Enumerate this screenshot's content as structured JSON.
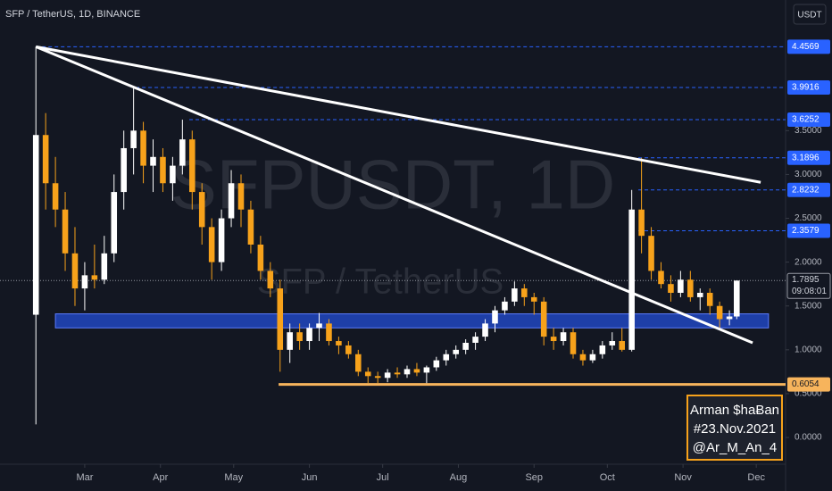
{
  "chart_data": {
    "type": "candlestick",
    "title": "SFP / TetherUS, 1D, BINANCE",
    "watermark": "SFPUSDT, 1D",
    "watermark_subtitle": "SFP / TetherUS",
    "currency_button": "USDT",
    "up_color": "#ffffff",
    "down_color": "#f7a21b",
    "x": [
      40,
      44,
      48,
      52,
      56,
      60,
      64,
      68,
      72,
      76,
      80,
      84,
      88,
      92,
      96,
      100,
      104,
      108,
      112,
      116,
      120,
      124,
      128,
      132,
      136,
      140,
      144,
      148,
      152,
      156,
      160,
      164,
      168,
      172,
      176,
      180,
      184,
      188,
      192,
      196,
      200,
      204,
      208,
      212,
      216,
      220,
      224,
      228,
      232,
      236,
      240,
      244,
      248,
      252,
      256,
      260,
      264,
      268,
      272,
      276,
      280,
      284,
      288,
      292,
      296,
      300,
      304,
      308,
      312,
      316,
      320,
      324,
      327
    ],
    "open": [
      1.4,
      3.45,
      2.9,
      2.6,
      2.1,
      1.7,
      1.85,
      1.8,
      2.1,
      2.8,
      3.3,
      3.5,
      3.1,
      3.2,
      2.9,
      3.1,
      3.4,
      2.8,
      2.4,
      2.0,
      2.5,
      2.9,
      2.6,
      2.2,
      1.9,
      1.7,
      1.0,
      1.2,
      1.1,
      1.25,
      1.3,
      1.1,
      1.05,
      0.95,
      0.75,
      0.7,
      0.68,
      0.74,
      0.72,
      0.78,
      0.74,
      0.8,
      0.88,
      0.95,
      1.0,
      1.08,
      1.15,
      1.3,
      1.45,
      1.55,
      1.7,
      1.6,
      1.55,
      1.15,
      1.1,
      1.2,
      0.95,
      0.88,
      0.95,
      1.05,
      1.1,
      1.0,
      2.6,
      2.3,
      1.9,
      1.75,
      1.65,
      1.8,
      1.6,
      1.65,
      1.5,
      1.35,
      1.38
    ],
    "high": [
      4.4569,
      3.7,
      3.2,
      2.8,
      2.4,
      2.0,
      2.2,
      2.3,
      3.0,
      3.5,
      3.9916,
      3.6,
      3.4,
      3.3,
      3.2,
      3.6252,
      3.5,
      2.9,
      2.5,
      2.6,
      3.05,
      3.0,
      2.7,
      2.3,
      2.0,
      1.8,
      1.3,
      1.3,
      1.3,
      1.42,
      1.35,
      1.15,
      1.1,
      1.0,
      0.8,
      0.75,
      0.78,
      0.8,
      0.82,
      0.85,
      0.82,
      0.92,
      1.0,
      1.05,
      1.12,
      1.2,
      1.35,
      1.5,
      1.6,
      1.78,
      1.75,
      1.65,
      1.6,
      1.25,
      1.25,
      1.25,
      1.0,
      1.0,
      1.1,
      1.2,
      1.25,
      2.8232,
      3.1896,
      2.4,
      2.0,
      1.85,
      1.9,
      1.9,
      1.7,
      1.7,
      1.55,
      1.45,
      1.79
    ],
    "low": [
      0.15,
      2.6,
      2.4,
      1.9,
      1.5,
      1.45,
      1.7,
      1.75,
      2.0,
      2.6,
      3.0,
      2.9,
      2.8,
      2.8,
      2.7,
      3.0,
      2.6,
      2.2,
      1.8,
      1.9,
      2.4,
      2.4,
      2.1,
      1.8,
      1.6,
      0.75,
      0.85,
      1.0,
      1.0,
      1.1,
      1.05,
      0.95,
      0.9,
      0.7,
      0.62,
      0.62,
      0.63,
      0.68,
      0.68,
      0.7,
      0.62,
      0.76,
      0.82,
      0.9,
      0.95,
      1.0,
      1.1,
      1.2,
      1.4,
      1.5,
      1.5,
      1.4,
      1.05,
      1.0,
      1.05,
      0.9,
      0.82,
      0.85,
      0.9,
      1.0,
      0.98,
      0.98,
      2.1,
      1.8,
      1.7,
      1.55,
      1.6,
      1.55,
      1.45,
      1.4,
      1.25,
      1.28,
      1.35
    ],
    "close": [
      3.45,
      2.9,
      2.6,
      2.1,
      1.7,
      1.85,
      1.8,
      2.1,
      2.8,
      3.3,
      3.5,
      3.1,
      3.2,
      2.9,
      3.1,
      3.4,
      2.8,
      2.4,
      2.0,
      2.5,
      2.9,
      2.6,
      2.2,
      1.9,
      1.7,
      1.0,
      1.2,
      1.1,
      1.25,
      1.3,
      1.1,
      1.05,
      0.95,
      0.75,
      0.7,
      0.68,
      0.74,
      0.72,
      0.78,
      0.74,
      0.8,
      0.88,
      0.95,
      1.0,
      1.08,
      1.15,
      1.3,
      1.45,
      1.55,
      1.7,
      1.6,
      1.55,
      1.15,
      1.1,
      1.2,
      0.95,
      0.88,
      0.95,
      1.05,
      1.1,
      1.0,
      2.6,
      2.3,
      1.9,
      1.75,
      1.65,
      1.8,
      1.6,
      1.65,
      1.5,
      1.35,
      1.38,
      1.7895
    ],
    "xlim": [
      25.3,
      347.0
    ],
    "ylim": [
      -0.305,
      4.99
    ],
    "xticks": [
      {
        "value": 60,
        "label": "Mar"
      },
      {
        "value": 91,
        "label": "Apr"
      },
      {
        "value": 121,
        "label": "May"
      },
      {
        "value": 152,
        "label": "Jun"
      },
      {
        "value": 182,
        "label": "Jul"
      },
      {
        "value": 213,
        "label": "Aug"
      },
      {
        "value": 244,
        "label": "Sep"
      },
      {
        "value": 274,
        "label": "Oct"
      },
      {
        "value": 305,
        "label": "Nov"
      },
      {
        "value": 335,
        "label": "Dec"
      }
    ],
    "yticks": [
      {
        "value": 0,
        "label": "0.0000"
      },
      {
        "value": 0.5,
        "label": "0.5000"
      },
      {
        "value": 1,
        "label": "1.0000"
      },
      {
        "value": 1.5,
        "label": "1.5000"
      },
      {
        "value": 2,
        "label": "2.0000"
      },
      {
        "value": 2.5,
        "label": "2.5000"
      },
      {
        "value": 3,
        "label": "3.0000"
      },
      {
        "value": 3.5,
        "label": "3.5000"
      }
    ],
    "grid": false,
    "levels": [
      {
        "value": 4.4569,
        "from": 40
      },
      {
        "value": 3.9916,
        "from": 80.9
      },
      {
        "value": 3.6252,
        "from": 102.8
      },
      {
        "value": 3.1896,
        "from": 286.7
      },
      {
        "value": 2.8232,
        "from": 286.7
      },
      {
        "value": 2.3579,
        "from": 286.7
      }
    ],
    "level_color": "#2962ff",
    "support_line": {
      "value": 0.6054,
      "from": 139.4,
      "color": "#f7b45c"
    },
    "support_zone": {
      "from": 48,
      "to": 340,
      "low": 1.25,
      "high": 1.41,
      "color": "#1e3fa8"
    },
    "trendlines": [
      {
        "x": [
          40,
          336.8
        ],
        "y": [
          4.4569,
          2.91
        ]
      },
      {
        "x": [
          40,
          333.5
        ],
        "y": [
          4.4569,
          1.08
        ]
      }
    ],
    "last_price": {
      "value": 1.7895,
      "countdown": "09:08:01"
    },
    "signature": [
      "Arman $haɃan",
      "#23.Nov.2021",
      "@Ar_M_An_4"
    ]
  }
}
